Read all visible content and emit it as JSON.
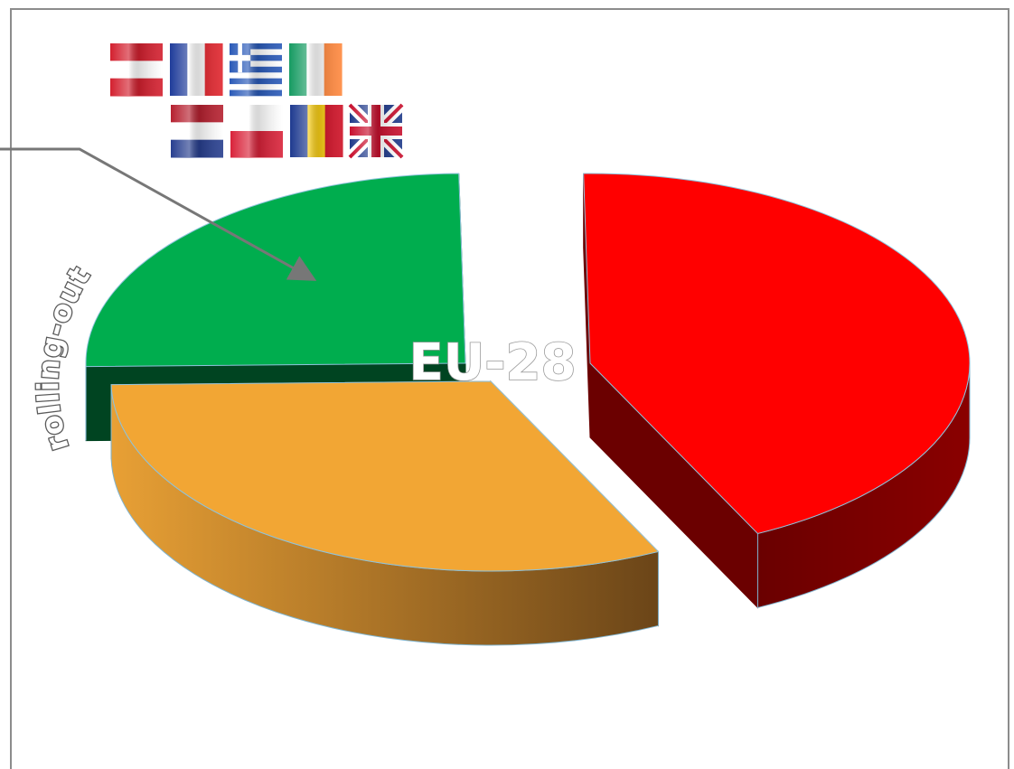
{
  "chart_data": {
    "type": "pie",
    "style": "3d-exploded",
    "center_label": "EU-28",
    "curved_label": "rolling-out",
    "slices": [
      {
        "value": 43,
        "color": "#ff0000",
        "side_color": "#6b0000"
      },
      {
        "value": 32,
        "color": "#f2a634",
        "side_color": "#a86e20"
      },
      {
        "value": 25,
        "color": "#00ad4e",
        "side_color": "#004421"
      }
    ],
    "flag_icons": [
      "flag-austria-icon",
      "flag-france-icon",
      "flag-greece-icon",
      "flag-ireland-icon",
      "flag-netherlands-icon",
      "flag-poland-icon",
      "flag-romania-icon",
      "flag-united-kingdom-icon"
    ],
    "legend": "none"
  }
}
